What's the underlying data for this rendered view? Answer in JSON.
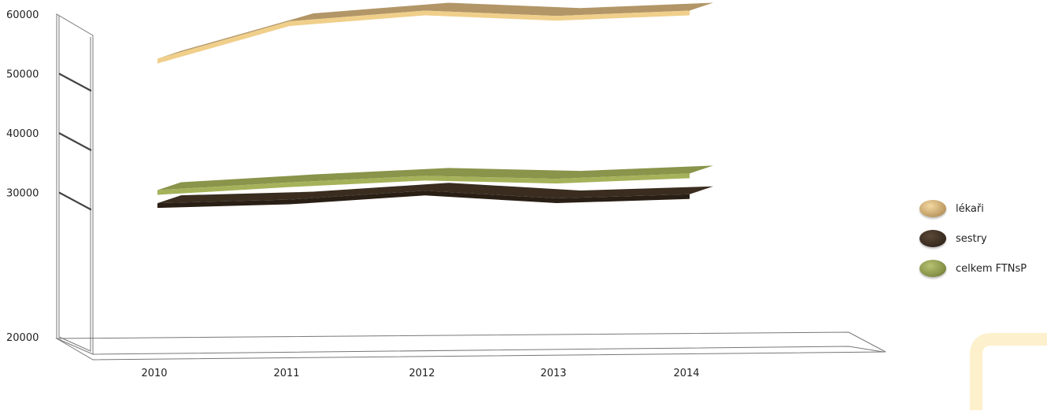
{
  "chart_data": {
    "type": "line",
    "categories": [
      "2010",
      "2011",
      "2012",
      "2013",
      "2014"
    ],
    "ylim": [
      20000,
      60000
    ],
    "yticks": [
      "20000",
      "30000",
      "40000",
      "50000",
      "60000"
    ],
    "series": [
      {
        "name": "lékaři",
        "values": [
          52500,
          58800,
          60600,
          59700,
          60600
        ],
        "color": "#c4a26a",
        "top_color": "#b29667",
        "edge_color": "#f0cf8a"
      },
      {
        "name": "sestry",
        "values": [
          28200,
          28800,
          30300,
          29000,
          29700
        ],
        "color": "#3c2e22",
        "top_color": "#3a2d20",
        "edge_color": "#2a1f15"
      },
      {
        "name": "celkem FTNsP",
        "values": [
          30400,
          31700,
          32800,
          32300,
          33200
        ],
        "color": "#8a944a",
        "top_color": "#8a944a",
        "edge_color": "#a6b25a"
      }
    ]
  }
}
